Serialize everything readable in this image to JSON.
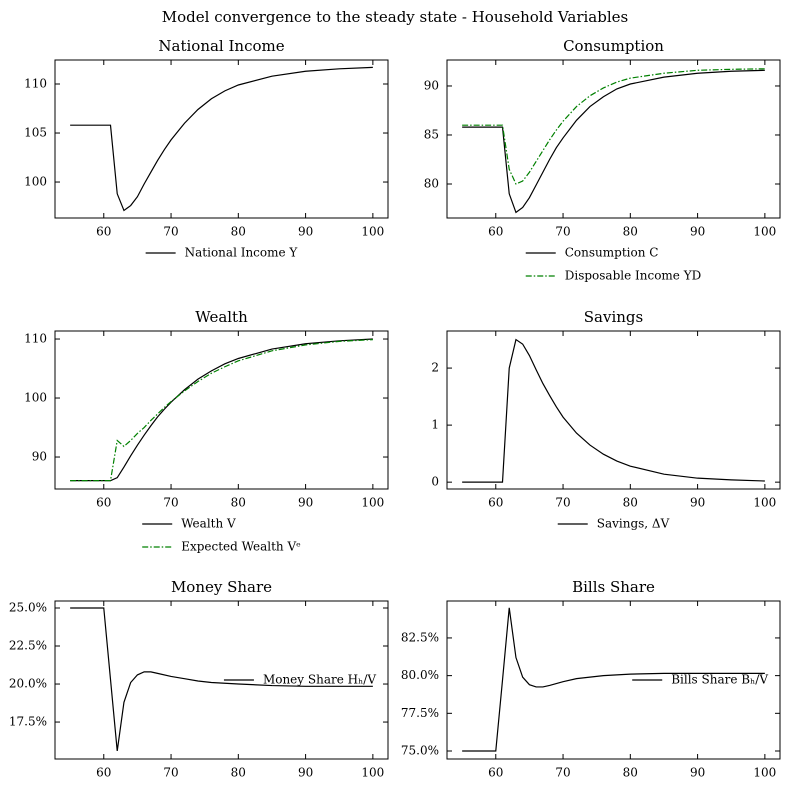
{
  "title": "Model convergence to the steady state - Household Variables",
  "chart_data": [
    {
      "type": "line",
      "title": "National Income",
      "legend": "below",
      "grid": false,
      "x": [
        55,
        56,
        57,
        58,
        59,
        60,
        61,
        62,
        63,
        64,
        65,
        66,
        67,
        68,
        69,
        70,
        72,
        74,
        76,
        78,
        80,
        85,
        90,
        95,
        100
      ],
      "series": [
        {
          "name": "National Income Y",
          "color": "#000000",
          "linestyle": "solid",
          "values": [
            105.8,
            105.8,
            105.8,
            105.8,
            105.8,
            105.8,
            105.8,
            98.8,
            97.1,
            97.6,
            98.5,
            99.8,
            101.0,
            102.2,
            103.3,
            104.3,
            106.0,
            107.4,
            108.5,
            109.3,
            109.9,
            110.8,
            111.3,
            111.55,
            111.7
          ]
        }
      ],
      "xlim": [
        52.75,
        102.25
      ],
      "xticks": [
        60,
        70,
        80,
        90,
        100
      ],
      "ylim": [
        96.33,
        112.45
      ],
      "yticks": [
        100,
        105,
        110
      ]
    },
    {
      "type": "line",
      "title": "Consumption",
      "legend": "below",
      "grid": false,
      "x": [
        55,
        56,
        57,
        58,
        59,
        60,
        61,
        62,
        63,
        64,
        65,
        66,
        67,
        68,
        69,
        70,
        72,
        74,
        76,
        78,
        80,
        85,
        90,
        95,
        100
      ],
      "series": [
        {
          "name": "Consumption C",
          "color": "#000000",
          "linestyle": "solid",
          "values": [
            85.8,
            85.8,
            85.8,
            85.8,
            85.8,
            85.8,
            85.8,
            79.0,
            77.1,
            77.6,
            78.6,
            79.9,
            81.2,
            82.5,
            83.7,
            84.7,
            86.5,
            87.9,
            88.9,
            89.7,
            90.2,
            90.9,
            91.3,
            91.5,
            91.6
          ]
        },
        {
          "name": "Disposable Income YD",
          "color": "#008000",
          "linestyle": "dashdot",
          "values": [
            86.0,
            86.0,
            86.0,
            86.0,
            86.0,
            86.0,
            86.0,
            81.5,
            80.0,
            80.3,
            81.2,
            82.3,
            83.4,
            84.5,
            85.5,
            86.4,
            87.9,
            89.0,
            89.8,
            90.4,
            90.8,
            91.3,
            91.6,
            91.7,
            91.75
          ]
        }
      ],
      "xlim": [
        52.75,
        102.25
      ],
      "xticks": [
        60,
        70,
        80,
        90,
        100
      ],
      "ylim": [
        76.53,
        92.65
      ],
      "yticks": [
        80,
        85,
        90
      ]
    },
    {
      "type": "line",
      "title": "Wealth",
      "legend": "below",
      "grid": false,
      "x": [
        55,
        56,
        57,
        58,
        59,
        60,
        61,
        62,
        63,
        64,
        65,
        66,
        67,
        68,
        69,
        70,
        72,
        74,
        76,
        78,
        80,
        85,
        90,
        95,
        100
      ],
      "series": [
        {
          "name": "Wealth V",
          "color": "#000000",
          "linestyle": "solid",
          "values": [
            86.0,
            86.0,
            86.0,
            86.0,
            86.0,
            86.0,
            86.0,
            86.5,
            88.3,
            90.2,
            92.0,
            93.7,
            95.3,
            96.8,
            98.1,
            99.3,
            101.4,
            103.2,
            104.6,
            105.8,
            106.7,
            108.3,
            109.2,
            109.7,
            110.0
          ]
        },
        {
          "name": "Expected Wealth Vᵉ",
          "color": "#008000",
          "linestyle": "dashdot",
          "values": [
            86.0,
            86.0,
            86.0,
            86.0,
            86.0,
            86.0,
            86.0,
            92.8,
            91.8,
            92.8,
            94.0,
            95.0,
            96.2,
            97.3,
            98.4,
            99.4,
            101.2,
            102.8,
            104.2,
            105.3,
            106.3,
            108.0,
            109.0,
            109.6,
            109.9
          ]
        }
      ],
      "xlim": [
        52.75,
        102.25
      ],
      "xticks": [
        60,
        70,
        80,
        90,
        100
      ],
      "ylim": [
        84.58,
        111.36
      ],
      "yticks": [
        90,
        100,
        110
      ]
    },
    {
      "type": "line",
      "title": "Savings",
      "legend": "below",
      "grid": false,
      "x": [
        55,
        56,
        57,
        58,
        59,
        60,
        61,
        62,
        63,
        64,
        65,
        66,
        67,
        68,
        69,
        70,
        72,
        74,
        76,
        78,
        80,
        85,
        90,
        95,
        100
      ],
      "series": [
        {
          "name": "Savings, ΔV",
          "color": "#000000",
          "linestyle": "solid",
          "values": [
            0,
            0,
            0,
            0,
            0,
            0,
            0,
            2.0,
            2.5,
            2.42,
            2.22,
            1.97,
            1.73,
            1.52,
            1.32,
            1.14,
            0.86,
            0.65,
            0.49,
            0.37,
            0.28,
            0.14,
            0.07,
            0.04,
            0.02
          ]
        }
      ],
      "xlim": [
        52.75,
        102.25
      ],
      "xticks": [
        60,
        70,
        80,
        90,
        100
      ],
      "ylim": [
        -0.12,
        2.65
      ],
      "yticks": [
        0,
        1,
        2
      ]
    },
    {
      "type": "line",
      "title": "Money Share",
      "legend": "center right",
      "grid": false,
      "x": [
        55,
        56,
        57,
        58,
        59,
        60,
        61,
        62,
        63,
        64,
        65,
        66,
        67,
        68,
        70,
        72,
        74,
        76,
        78,
        80,
        85,
        90,
        95,
        100
      ],
      "series": [
        {
          "name": "Money Share Hₕ/V",
          "color": "#000000",
          "linestyle": "solid",
          "values": [
            25.0,
            25.0,
            25.0,
            25.0,
            25.0,
            25.0,
            20.3,
            15.6,
            18.8,
            20.1,
            20.6,
            20.8,
            20.8,
            20.7,
            20.5,
            20.35,
            20.2,
            20.1,
            20.05,
            20.0,
            19.9,
            19.85,
            19.85,
            19.85
          ]
        }
      ],
      "xlim": [
        52.75,
        102.25
      ],
      "xticks": [
        60,
        70,
        80,
        90,
        100
      ],
      "ylim": [
        15.07,
        25.46
      ],
      "yticks": [
        {
          "value": 17.5,
          "label": "17.5%"
        },
        {
          "value": 20,
          "label": "20.0%"
        },
        {
          "value": 22.5,
          "label": "22.5%"
        },
        {
          "value": 25,
          "label": "25.0%"
        }
      ]
    },
    {
      "type": "line",
      "title": "Bills Share",
      "legend": "center right",
      "grid": false,
      "x": [
        55,
        56,
        57,
        58,
        59,
        60,
        61,
        62,
        63,
        64,
        65,
        66,
        67,
        68,
        70,
        72,
        74,
        76,
        78,
        80,
        85,
        90,
        95,
        100
      ],
      "series": [
        {
          "name": "Bills Share Bₕ/V",
          "color": "#000000",
          "linestyle": "solid",
          "values": [
            75.0,
            75.0,
            75.0,
            75.0,
            75.0,
            75.0,
            79.7,
            84.5,
            81.2,
            79.9,
            79.4,
            79.25,
            79.25,
            79.35,
            79.6,
            79.8,
            79.9,
            80.0,
            80.05,
            80.1,
            80.15,
            80.15,
            80.15,
            80.15
          ]
        }
      ],
      "xlim": [
        52.75,
        102.25
      ],
      "xticks": [
        60,
        70,
        80,
        90,
        100
      ],
      "ylim": [
        74.47,
        84.95
      ],
      "yticks": [
        {
          "value": 75,
          "label": "75.0%"
        },
        {
          "value": 77.5,
          "label": "77.5%"
        },
        {
          "value": 80,
          "label": "80.0%"
        },
        {
          "value": 82.5,
          "label": "82.5%"
        }
      ]
    }
  ]
}
